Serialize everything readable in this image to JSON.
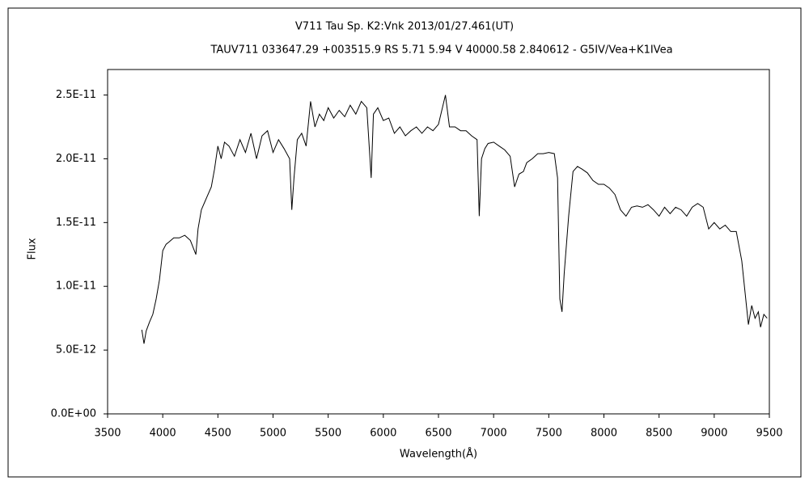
{
  "chart_data": {
    "type": "line",
    "title": "V711 Tau    Sp. K2:Vnk    2013/01/27.461(UT)",
    "subtitle": "TAUV711 033647.29 +003515.9 RS 5.71 5.94 V 40000.58 2.840612 - G5IV/Vea+K1IVea",
    "x_label": "Wavelength(Å)",
    "y_label": "Flux",
    "color": "#000000",
    "xlim": [
      3500,
      9500
    ],
    "ylim": [
      0,
      2.7e-11
    ],
    "xticks": [
      3500,
      4000,
      4500,
      5000,
      5500,
      6000,
      6500,
      7000,
      7500,
      8000,
      8500,
      9000,
      9500
    ],
    "yticks": [
      {
        "value": 0,
        "label": "0.0E+00"
      },
      {
        "value": 5e-12,
        "label": "5.0E-12"
      },
      {
        "value": 1e-11,
        "label": "1.0E-11"
      },
      {
        "value": 1.5e-11,
        "label": "1.5E-11"
      },
      {
        "value": 2e-11,
        "label": "2.0E-11"
      },
      {
        "value": 2.5e-11,
        "label": "2.5E-11"
      }
    ],
    "x": [
      3810,
      3830,
      3850,
      3880,
      3910,
      3940,
      3970,
      4000,
      4030,
      4060,
      4100,
      4150,
      4200,
      4250,
      4300,
      4320,
      4350,
      4400,
      4440,
      4470,
      4500,
      4530,
      4560,
      4600,
      4650,
      4700,
      4750,
      4800,
      4850,
      4900,
      4950,
      5000,
      5050,
      5100,
      5150,
      5170,
      5190,
      5220,
      5260,
      5300,
      5340,
      5380,
      5420,
      5460,
      5500,
      5550,
      5600,
      5650,
      5700,
      5750,
      5800,
      5850,
      5890,
      5910,
      5950,
      6000,
      6050,
      6100,
      6150,
      6200,
      6250,
      6300,
      6350,
      6400,
      6450,
      6500,
      6563,
      6600,
      6650,
      6700,
      6750,
      6800,
      6850,
      6870,
      6890,
      6920,
      6950,
      7000,
      7050,
      7100,
      7150,
      7190,
      7230,
      7270,
      7300,
      7350,
      7400,
      7450,
      7500,
      7550,
      7580,
      7600,
      7620,
      7640,
      7680,
      7720,
      7760,
      7800,
      7850,
      7900,
      7950,
      8000,
      8050,
      8100,
      8150,
      8200,
      8250,
      8300,
      8350,
      8400,
      8450,
      8500,
      8550,
      8600,
      8650,
      8700,
      8750,
      8800,
      8850,
      8900,
      8950,
      9000,
      9050,
      9100,
      9150,
      9200,
      9250,
      9280,
      9310,
      9340,
      9370,
      9400,
      9420,
      9450,
      9480
    ],
    "values": [
      6.6e-12,
      5.5e-12,
      6.5e-12,
      7.2e-12,
      7.8e-12,
      9e-12,
      1.05e-11,
      1.28e-11,
      1.33e-11,
      1.35e-11,
      1.38e-11,
      1.38e-11,
      1.4e-11,
      1.36e-11,
      1.25e-11,
      1.45e-11,
      1.6e-11,
      1.7e-11,
      1.78e-11,
      1.92e-11,
      2.1e-11,
      2e-11,
      2.13e-11,
      2.1e-11,
      2.02e-11,
      2.15e-11,
      2.05e-11,
      2.2e-11,
      2e-11,
      2.18e-11,
      2.22e-11,
      2.05e-11,
      2.15e-11,
      2.08e-11,
      2e-11,
      1.6e-11,
      1.85e-11,
      2.15e-11,
      2.2e-11,
      2.1e-11,
      2.45e-11,
      2.25e-11,
      2.35e-11,
      2.3e-11,
      2.4e-11,
      2.32e-11,
      2.38e-11,
      2.33e-11,
      2.42e-11,
      2.35e-11,
      2.45e-11,
      2.4e-11,
      1.85e-11,
      2.35e-11,
      2.4e-11,
      2.3e-11,
      2.32e-11,
      2.2e-11,
      2.25e-11,
      2.18e-11,
      2.22e-11,
      2.25e-11,
      2.2e-11,
      2.25e-11,
      2.22e-11,
      2.27e-11,
      2.5e-11,
      2.25e-11,
      2.25e-11,
      2.22e-11,
      2.22e-11,
      2.18e-11,
      2.15e-11,
      1.55e-11,
      2e-11,
      2.08e-11,
      2.12e-11,
      2.13e-11,
      2.1e-11,
      2.07e-11,
      2.02e-11,
      1.78e-11,
      1.88e-11,
      1.9e-11,
      1.97e-11,
      2e-11,
      2.04e-11,
      2.04e-11,
      2.05e-11,
      2.04e-11,
      1.85e-11,
      9e-12,
      8e-12,
      1.1e-11,
      1.55e-11,
      1.9e-11,
      1.94e-11,
      1.92e-11,
      1.89e-11,
      1.83e-11,
      1.8e-11,
      1.8e-11,
      1.77e-11,
      1.72e-11,
      1.6e-11,
      1.55e-11,
      1.62e-11,
      1.63e-11,
      1.62e-11,
      1.64e-11,
      1.6e-11,
      1.55e-11,
      1.62e-11,
      1.57e-11,
      1.62e-11,
      1.6e-11,
      1.55e-11,
      1.62e-11,
      1.65e-11,
      1.62e-11,
      1.45e-11,
      1.5e-11,
      1.45e-11,
      1.48e-11,
      1.43e-11,
      1.43e-11,
      1.2e-11,
      9.5e-12,
      7e-12,
      8.5e-12,
      7.5e-12,
      8e-12,
      6.8e-12,
      7.8e-12,
      7.5e-12
    ]
  }
}
